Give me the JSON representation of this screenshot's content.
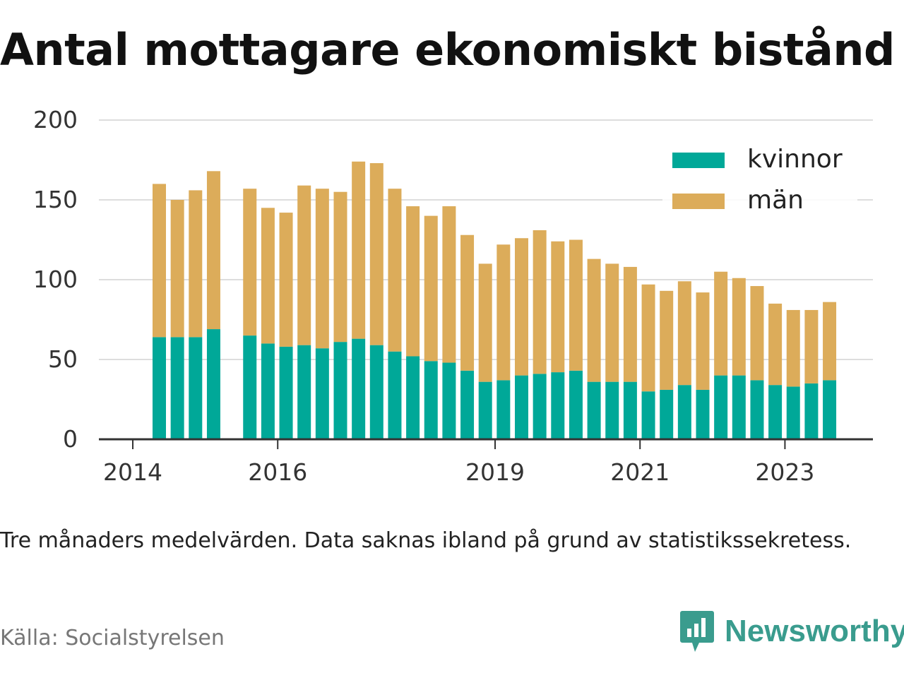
{
  "title": "Antal mottagare ekonomiskt bistånd",
  "note": "Tre månaders medelvärden. Data saknas ibland på grund av statistikssekretess.",
  "source": "Källa: Socialstyrelsen",
  "brand": {
    "name": "Newsworthy",
    "color": "#3a9c8e",
    "icon": "newsworthy-logo-icon"
  },
  "chart_data": {
    "type": "bar",
    "stacked": true,
    "x_tick_labels": [
      {
        "label": "2014",
        "index": -1
      },
      {
        "label": "2016",
        "index": 7
      },
      {
        "label": "2019",
        "index": 19
      },
      {
        "label": "2021",
        "index": 27
      },
      {
        "label": "2023",
        "index": 35
      }
    ],
    "y_ticks": [
      0,
      50,
      100,
      150,
      200
    ],
    "ylim": [
      0,
      200
    ],
    "grid": true,
    "legend_position": "top-right",
    "series": [
      {
        "name": "kvinnor",
        "color": "#00a898",
        "values": [
          64,
          64,
          64,
          69,
          null,
          65,
          60,
          58,
          59,
          57,
          61,
          63,
          59,
          55,
          52,
          49,
          48,
          43,
          36,
          37,
          40,
          41,
          42,
          43,
          36,
          36,
          36,
          30,
          31,
          34,
          31,
          40,
          40,
          37,
          34,
          33,
          35,
          37
        ]
      },
      {
        "name": "män",
        "color": "#dcac5a",
        "values": [
          96,
          86,
          92,
          99,
          null,
          92,
          85,
          84,
          100,
          100,
          94,
          111,
          114,
          102,
          94,
          91,
          98,
          85,
          74,
          85,
          86,
          90,
          82,
          82,
          77,
          74,
          72,
          67,
          62,
          65,
          61,
          65,
          61,
          59,
          51,
          48,
          46,
          49
        ]
      }
    ]
  }
}
